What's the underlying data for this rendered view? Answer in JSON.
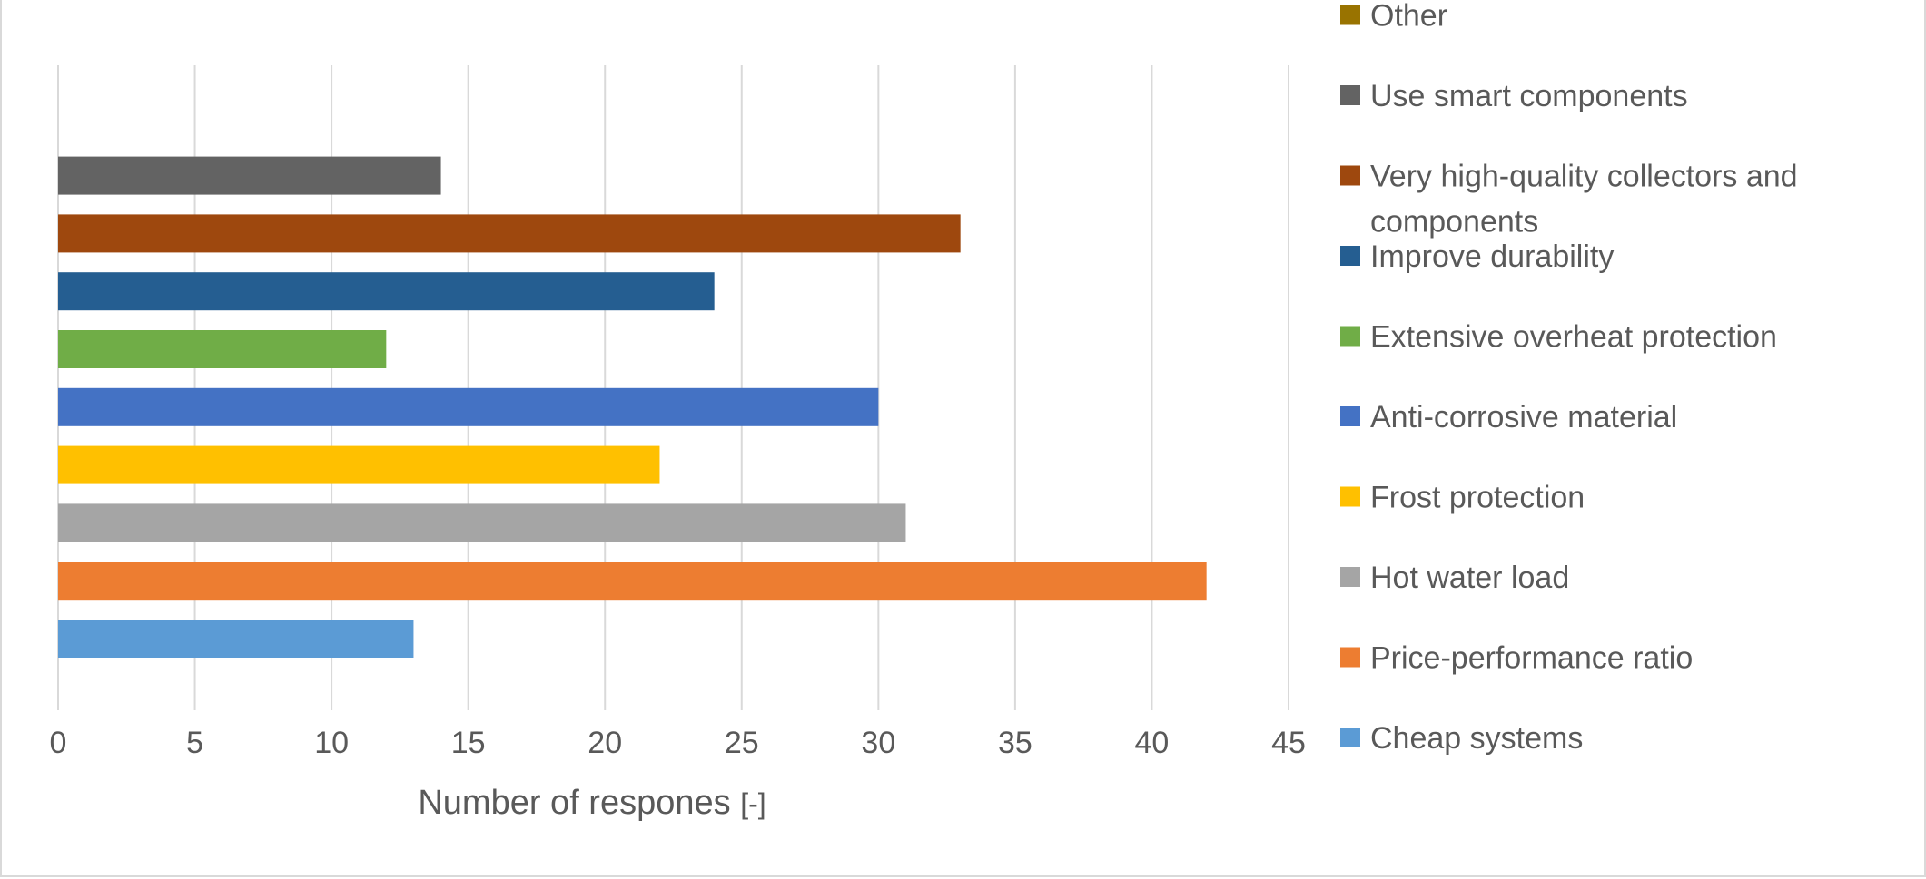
{
  "chart_data": {
    "type": "bar",
    "orientation": "horizontal",
    "categories": [
      "Cheap systems",
      "Price-performance ratio",
      "Hot water load",
      "Frost protection",
      "Anti-corrosive material",
      "Extensive overheat protection",
      "Improve durability",
      "Very high-quality collectors and components",
      "Use smart components",
      "Other"
    ],
    "series": [
      {
        "category": "Cheap systems",
        "value": 13,
        "color": "#5B9BD5"
      },
      {
        "category": "Price-performance ratio",
        "value": 42,
        "color": "#ED7D31"
      },
      {
        "category": "Hot water load",
        "value": 31,
        "color": "#A5A5A5"
      },
      {
        "category": "Frost protection",
        "value": 22,
        "color": "#FFC000"
      },
      {
        "category": "Anti-corrosive material",
        "value": 30,
        "color": "#4472C4"
      },
      {
        "category": "Extensive overheat protection",
        "value": 12,
        "color": "#70AD47"
      },
      {
        "category": "Improve durability",
        "value": 24,
        "color": "#255E91"
      },
      {
        "category": "Very high-quality collectors and components",
        "value": 33,
        "color": "#9E480E"
      },
      {
        "category": "Use smart components",
        "value": 14,
        "color": "#636363"
      },
      {
        "category": "Other",
        "value": 0,
        "color": "#997300"
      }
    ],
    "xlabel": "Number of respones",
    "xlabel_unit": "[-]",
    "ylabel": "",
    "xlim": [
      0,
      45
    ],
    "xticks": [
      0,
      5,
      10,
      15,
      20,
      25,
      30,
      35,
      40,
      45
    ],
    "grid": "vertical",
    "legend_position": "right"
  }
}
